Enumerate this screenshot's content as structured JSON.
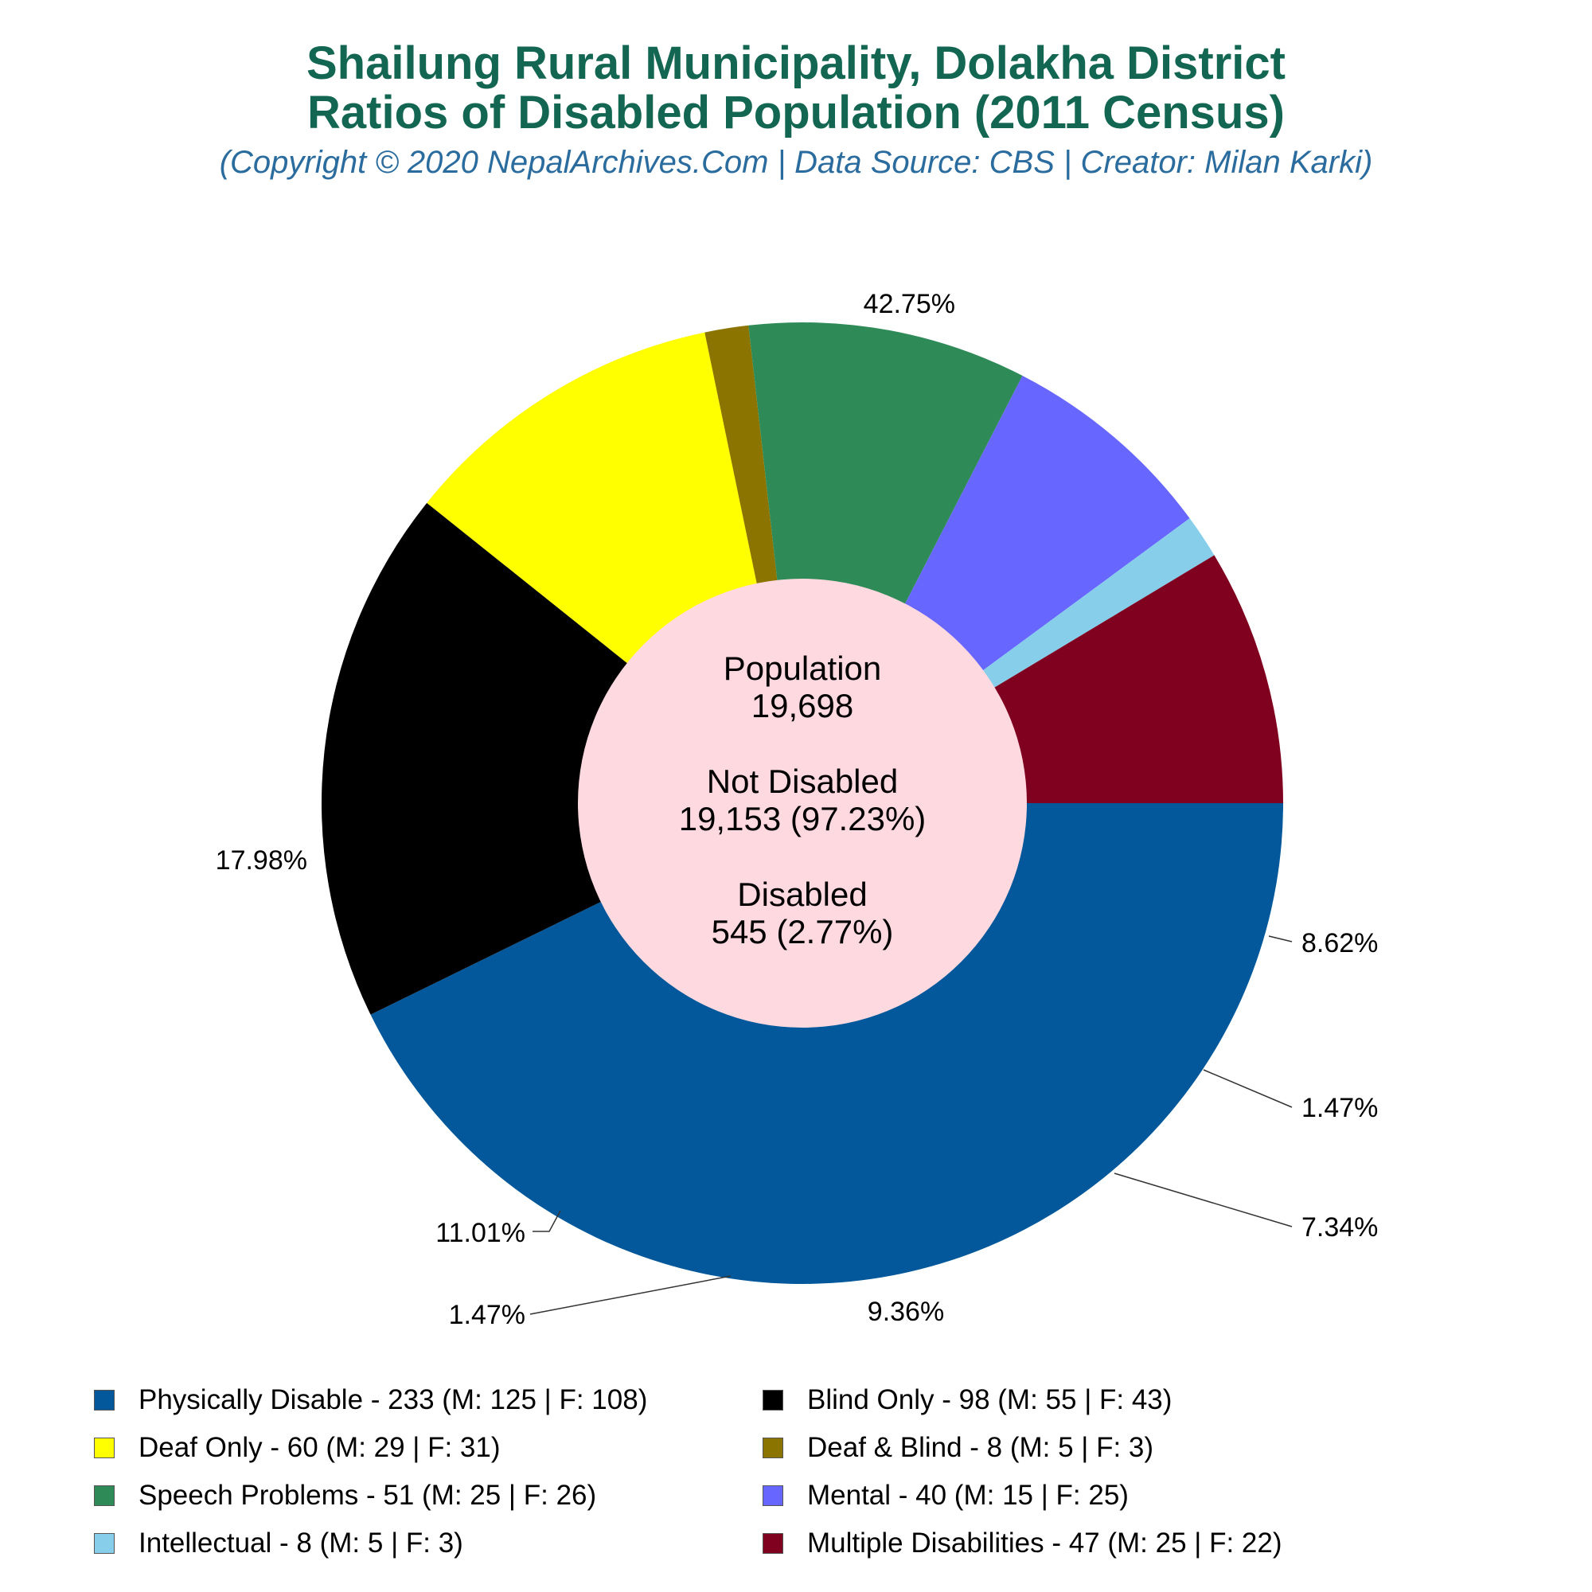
{
  "header": {
    "title_line1": "Shailung Rural Municipality, Dolakha District",
    "title_line2": "Ratios of Disabled Population (2011 Census)",
    "subtitle": "(Copyright © 2020 NepalArchives.Com | Data Source: CBS | Creator: Milan Karki)"
  },
  "center": {
    "population_label": "Population",
    "population_value": "19,698",
    "not_disabled_label": "Not Disabled",
    "not_disabled_value": "19,153 (97.23%)",
    "disabled_label": "Disabled",
    "disabled_value": "545 (2.77%)"
  },
  "chart_data": {
    "type": "pie",
    "title": "Shailung Rural Municipality, Dolakha District Ratios of Disabled Population (2011 Census)",
    "subtitle": "(Copyright © 2020 NepalArchives.Com | Data Source: CBS | Creator: Milan Karki)",
    "donut": true,
    "start": "3 o'clock, clockwise",
    "legend_position": "bottom",
    "slices": [
      {
        "name": "Physically Disable",
        "value": 233,
        "male": 125,
        "female": 108,
        "percent": 42.75,
        "label": "42.75%",
        "legend": "Physically Disable - 233 (M: 125 | F: 108)",
        "color": "#02589a"
      },
      {
        "name": "Blind Only",
        "value": 98,
        "male": 55,
        "female": 43,
        "percent": 17.98,
        "label": "17.98%",
        "legend": "Blind Only - 98 (M: 55 | F: 43)",
        "color": "#000000"
      },
      {
        "name": "Deaf Only",
        "value": 60,
        "male": 29,
        "female": 31,
        "percent": 11.01,
        "label": "11.01%",
        "legend": "Deaf Only - 60 (M: 29 | F: 31)",
        "color": "#ffff00"
      },
      {
        "name": "Deaf & Blind",
        "value": 8,
        "male": 5,
        "female": 3,
        "percent": 1.47,
        "label": "1.47%",
        "legend": "Deaf & Blind - 8 (M: 5 | F: 3)",
        "color": "#8b7500"
      },
      {
        "name": "Speech Problems",
        "value": 51,
        "male": 25,
        "female": 26,
        "percent": 9.36,
        "label": "9.36%",
        "legend": "Speech Problems - 51 (M: 25 | F: 26)",
        "color": "#2e8b57"
      },
      {
        "name": "Mental",
        "value": 40,
        "male": 15,
        "female": 25,
        "percent": 7.34,
        "label": "7.34%",
        "legend": "Mental - 40 (M: 15 | F: 25)",
        "color": "#6767ff"
      },
      {
        "name": "Intellectual",
        "value": 8,
        "male": 5,
        "female": 3,
        "percent": 1.47,
        "label": "1.47%",
        "legend": "Intellectual - 8 (M: 5 | F: 3)",
        "color": "#87ceeb"
      },
      {
        "name": "Multiple Disabilities",
        "value": 47,
        "male": 25,
        "female": 22,
        "percent": 8.62,
        "label": "8.62%",
        "legend": "Multiple Disabilities - 47 (M: 25 | F: 22)",
        "color": "#800020"
      }
    ],
    "center_fill": "#ffd9e0"
  }
}
